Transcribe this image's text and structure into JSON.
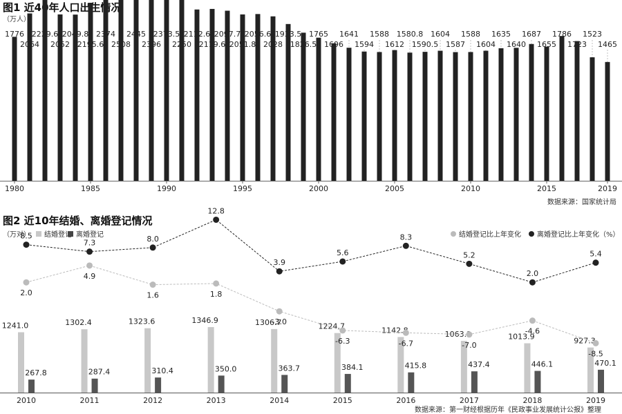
{
  "chart_data": [
    {
      "type": "bar",
      "title": "图1 近40年人口出生情况",
      "unit": "（万人）",
      "source": "数据来源：国家统计局",
      "x": [
        1980,
        1981,
        1982,
        1983,
        1984,
        1985,
        1986,
        1987,
        1988,
        1989,
        1990,
        1991,
        1992,
        1993,
        1994,
        1995,
        1996,
        1997,
        1998,
        1999,
        2000,
        2001,
        2002,
        2003,
        2004,
        2005,
        2006,
        2007,
        2008,
        2009,
        2010,
        2011,
        2012,
        2013,
        2014,
        2015,
        2016,
        2017,
        2018,
        2019
      ],
      "values": [
        1776,
        2064,
        2229.6,
        2052,
        2049.8,
        2195.6,
        2374,
        2508,
        2445,
        2396,
        2373.5,
        2250,
        2112.6,
        2119.6,
        2097.7,
        2051.8,
        2056.6,
        2028,
        1933.5,
        1826.5,
        1765,
        1696,
        1641,
        1594,
        1588,
        1612,
        1580.8,
        1590.5,
        1604,
        1587,
        1588,
        1604,
        1635,
        1640,
        1687,
        1655,
        1786,
        1723,
        1523,
        1465
      ],
      "labels": [
        "1776",
        "2064",
        "2229.6",
        "2052",
        "2049.8",
        "2195.6",
        "2374",
        "2508",
        "2445",
        "2396",
        "2373.5",
        "2250",
        "2112.6",
        "2119.6",
        "2097.7",
        "2051.8",
        "2056.6",
        "2028",
        "1933.5",
        "1826.5",
        "1765",
        "1696",
        "1641",
        "1594",
        "1588",
        "1612",
        "1580.8",
        "1590.5",
        "1604",
        "1587",
        "1588",
        "1604",
        "1635",
        "1640",
        "1687",
        "1655",
        "1786",
        "1723",
        "1523",
        "1465"
      ],
      "xticks": [
        "1980",
        "1985",
        "1990",
        "1995",
        "2000",
        "2005",
        "2010",
        "2015",
        "2019"
      ],
      "colors": {
        "bar": "#222222"
      }
    },
    {
      "type": "bar+line",
      "title": "图2 近10年结婚、离婚登记情况",
      "unit": "（万对）",
      "source": "数据来源：第一财经根据历年《民政事业发展统计公报》整理",
      "categories": [
        "2010",
        "2011",
        "2012",
        "2013",
        "2014",
        "2015",
        "2016",
        "2017",
        "2018",
        "2019"
      ],
      "series": [
        {
          "name": "结婚登记",
          "kind": "bar",
          "color": "#c8c8c8",
          "values": [
            1241.0,
            1302.4,
            1323.6,
            1346.9,
            1306.7,
            1224.7,
            1142.8,
            1063.1,
            1013.9,
            927.3
          ],
          "labels": [
            "1241.0",
            "1302.4",
            "1323.6",
            "1346.9",
            "1306.7",
            "1224.7",
            "1142.8",
            "1063.1",
            "1013.9",
            "927.3"
          ]
        },
        {
          "name": "离婚登记",
          "kind": "bar",
          "color": "#555555",
          "values": [
            267.8,
            287.4,
            310.4,
            350.0,
            363.7,
            384.1,
            415.8,
            437.4,
            446.1,
            470.1
          ],
          "labels": [
            "267.8",
            "287.4",
            "310.4",
            "350.0",
            "363.7",
            "384.1",
            "415.8",
            "437.4",
            "446.1",
            "470.1"
          ]
        },
        {
          "name": "结婚登记比上年变化",
          "kind": "line",
          "color": "#bbbbbb",
          "values": [
            2.0,
            4.9,
            1.6,
            1.8,
            -3.0,
            -6.3,
            -6.7,
            -7.0,
            -4.6,
            -8.5
          ],
          "labels": [
            "2.0",
            "4.9",
            "1.6",
            "1.8",
            "-3.0",
            "-6.3",
            "-6.7",
            "-7.0",
            "-4.6",
            "-8.5"
          ]
        },
        {
          "name": "离婚登记比上年变化（%）",
          "kind": "line",
          "color": "#222222",
          "values": [
            8.5,
            7.3,
            8.0,
            12.8,
            3.9,
            5.6,
            8.3,
            5.2,
            2.0,
            5.4
          ],
          "labels": [
            "8.5",
            "7.3",
            "8.0",
            "12.8",
            "3.9",
            "5.6",
            "8.3",
            "5.2",
            "2.0",
            "5.4"
          ]
        }
      ]
    }
  ]
}
